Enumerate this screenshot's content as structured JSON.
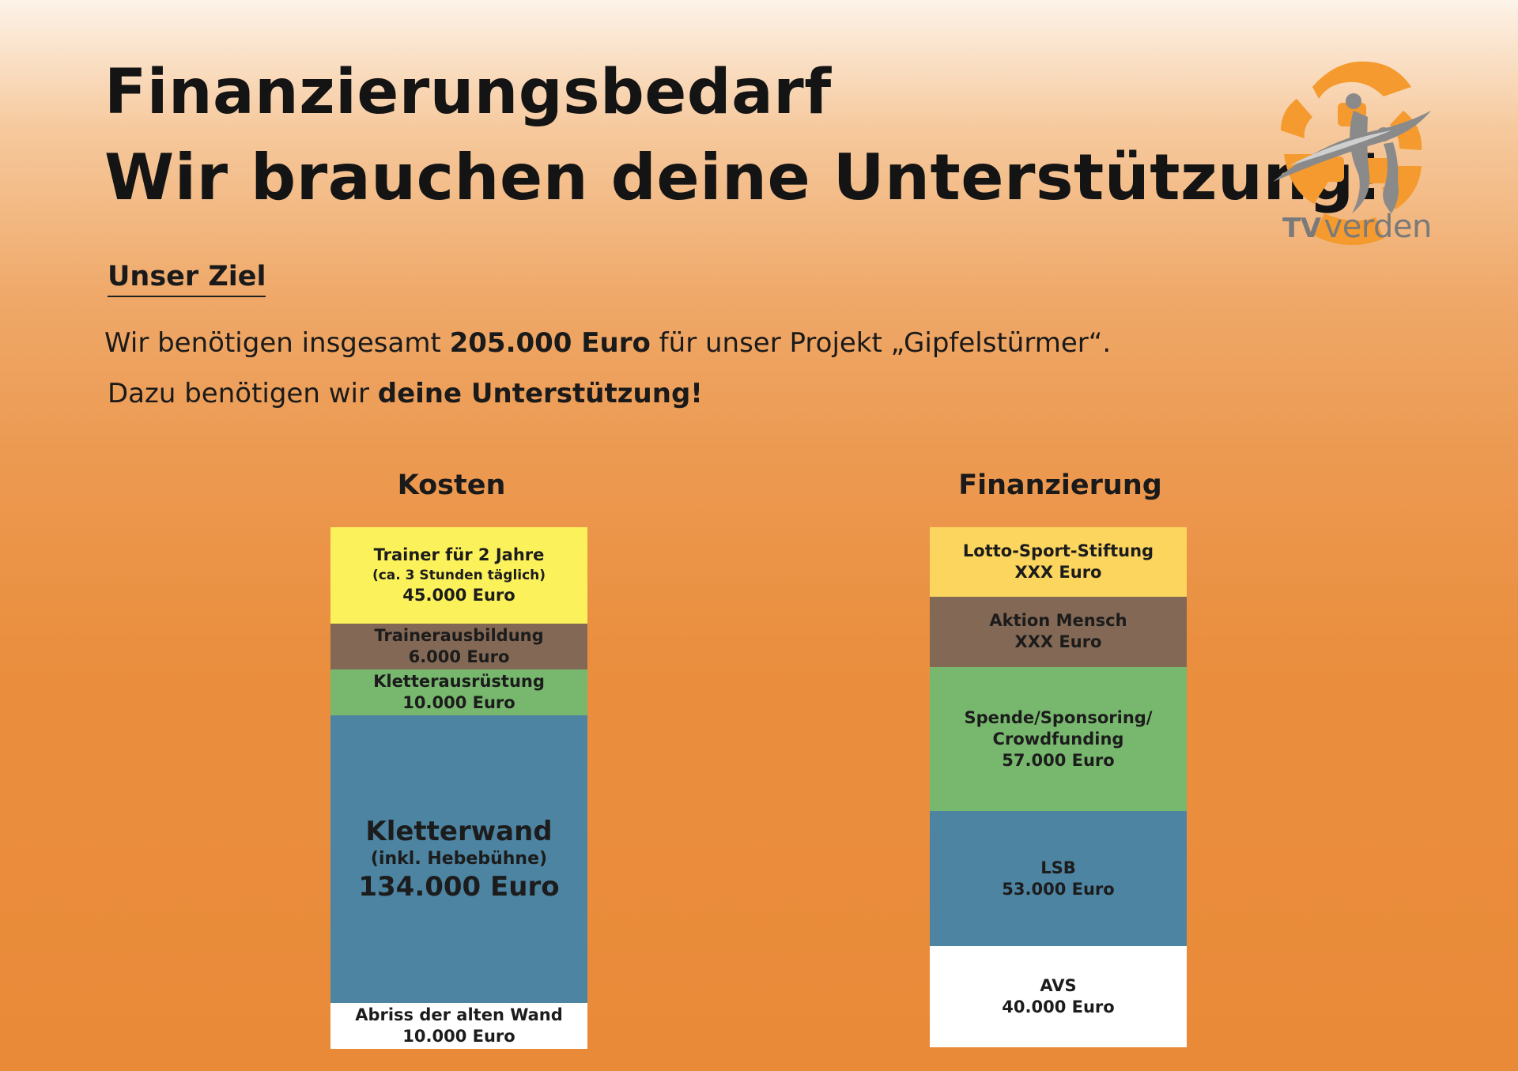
{
  "header": {
    "title_line1": "Finanzierungsbedarf",
    "title_line2": "Wir brauchen deine Unterstützung!"
  },
  "logo": {
    "text_tv": "TV",
    "text_verden": "verden",
    "colors": {
      "orange": "#f49a2e",
      "grey": "#7a7a7a"
    }
  },
  "goal": {
    "heading": "Unser Ziel",
    "line1_pre": "Wir benötigen insgesamt ",
    "line1_bold": "205.000 Euro",
    "line1_post": " für unser Projekt „Gipfelstürmer“.",
    "line2_pre": "Dazu benötigen wir ",
    "line2_bold": "deine Unterstützung!"
  },
  "chart_data": [
    {
      "type": "bar",
      "title": "Kosten",
      "categories": [
        "Trainer für 2 Jahre",
        "Trainerausbildung",
        "Kletterausrüstung",
        "Kletterwand",
        "Abriss der alten Wand"
      ],
      "values": [
        45000,
        6000,
        10000,
        134000,
        10000
      ],
      "segments": [
        {
          "name": "Trainer für 2 Jahre",
          "note": "(ca. 3 Stunden täglich)",
          "label": "45.000 Euro",
          "value": 45000,
          "color": "#fbf15a"
        },
        {
          "name": "Trainerausbildung",
          "note": "",
          "label": "6.000 Euro",
          "value": 6000,
          "color": "#836955"
        },
        {
          "name": "Kletterausrüstung",
          "note": "",
          "label": "10.000 Euro",
          "value": 10000,
          "color": "#78b86e"
        },
        {
          "name": "Kletterwand",
          "note": "(inkl.  Hebebühne)",
          "label": "134.000 Euro",
          "value": 134000,
          "color": "#4d84a2"
        },
        {
          "name": "Abriss der alten Wand",
          "note": "",
          "label": "10.000 Euro",
          "value": 10000,
          "color": "#ffffff"
        }
      ]
    },
    {
      "type": "bar",
      "title": "Finanzierung",
      "categories": [
        "Lotto-Sport-Stiftung",
        "Aktion Mensch",
        "Spende/Sponsoring/Crowdfunding",
        "LSB",
        "AVS"
      ],
      "values": [
        27500,
        27500,
        57000,
        53000,
        40000
      ],
      "segments": [
        {
          "name": "Lotto-Sport-Stiftung",
          "label": "XXX Euro",
          "value": 27500,
          "color": "#fbd55e"
        },
        {
          "name": "Aktion Mensch",
          "label": "XXX Euro",
          "value": 27500,
          "color": "#836955"
        },
        {
          "name": "Spende/Sponsoring/",
          "name2": "Crowdfunding",
          "label": "57.000 Euro",
          "value": 57000,
          "color": "#78b86e"
        },
        {
          "name": "LSB",
          "label": "53.000 Euro",
          "value": 53000,
          "color": "#4d84a2"
        },
        {
          "name": "AVS",
          "label": "40.000 Euro",
          "value": 40000,
          "color": "#ffffff"
        }
      ]
    }
  ]
}
